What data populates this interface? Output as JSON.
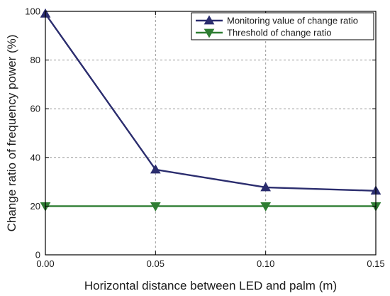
{
  "chart_data": {
    "type": "line",
    "title": "",
    "xlabel": "Horizontal distance between LED and palm (m)",
    "ylabel": "Change ratio of frequency power (%)",
    "xlim": [
      0,
      0.15
    ],
    "ylim": [
      0,
      100
    ],
    "x_ticks": [
      "0.00",
      "0.05",
      "0.10",
      "0.15"
    ],
    "y_ticks": [
      "0",
      "20",
      "40",
      "60",
      "80",
      "100"
    ],
    "grid": true,
    "legend_position": "top-right",
    "x": [
      0.0,
      0.05,
      0.1,
      0.15
    ],
    "series": [
      {
        "name": "Monitoring value of change ratio",
        "values": [
          99,
          35,
          27.7,
          26.3
        ],
        "color": "#2b2d6e",
        "marker": "triangle-up"
      },
      {
        "name": "Threshold of change ratio",
        "values": [
          20,
          20,
          20,
          20
        ],
        "color": "#2e7d32",
        "marker": "triangle-down"
      }
    ]
  }
}
